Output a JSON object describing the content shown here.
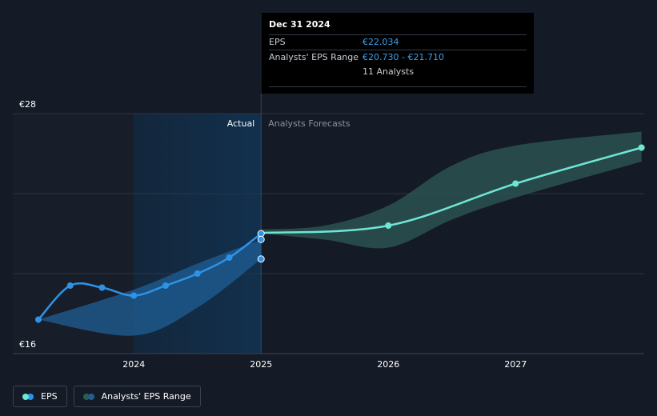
{
  "tooltip": {
    "date": "Dec 31 2024",
    "eps_label": "EPS",
    "eps_value": "€22.034",
    "range_label": "Analysts' EPS Range",
    "range_value": "€20.730 - €21.710",
    "analysts": "11 Analysts"
  },
  "regions": {
    "actual_label": "Actual",
    "forecast_label": "Analysts Forecasts"
  },
  "legend": {
    "eps_label": "EPS",
    "range_label": "Analysts' EPS Range"
  },
  "colors": {
    "background": "#151b26",
    "eps_actual": "#2e93e6",
    "eps_forecast": "#6ee6d5",
    "range_band_actual": "#1f5f96",
    "range_band_forecast": "#2e5a57",
    "actual_shade": "#12304d"
  },
  "chart_data": {
    "type": "line",
    "y_tick_labels": [
      "€28",
      "€16"
    ],
    "ylim": [
      16,
      28
    ],
    "x_tick_labels": [
      "2024",
      "2025",
      "2026",
      "2027"
    ],
    "xlim": [
      2023.25,
      2027.99
    ],
    "grid": true,
    "series": [
      {
        "name": "EPS",
        "segment": "actual",
        "points": [
          [
            2023.25,
            17.7
          ],
          [
            2023.5,
            19.4
          ],
          [
            2023.75,
            19.3
          ],
          [
            2024.0,
            18.9
          ],
          [
            2024.25,
            19.4
          ],
          [
            2024.5,
            20.0
          ],
          [
            2024.75,
            20.8
          ],
          [
            2025.0,
            22.0
          ]
        ]
      },
      {
        "name": "EPS",
        "segment": "forecast",
        "points": [
          [
            2025.0,
            22.034
          ],
          [
            2026.0,
            22.4
          ],
          [
            2027.0,
            24.5
          ],
          [
            2027.99,
            26.3
          ]
        ]
      }
    ],
    "range": {
      "name": "Analysts' EPS Range",
      "actual_upper": [
        [
          2023.25,
          17.7
        ],
        [
          2024.0,
          19.2
        ],
        [
          2024.5,
          20.5
        ],
        [
          2025.0,
          21.7
        ]
      ],
      "actual_lower": [
        [
          2023.25,
          17.7
        ],
        [
          2024.0,
          16.9
        ],
        [
          2024.5,
          18.3
        ],
        [
          2025.0,
          20.73
        ]
      ],
      "forecast_upper": [
        [
          2025.0,
          22.2
        ],
        [
          2025.5,
          22.4
        ],
        [
          2026.0,
          23.4
        ],
        [
          2026.5,
          25.4
        ],
        [
          2027.0,
          26.4
        ],
        [
          2027.99,
          27.1
        ]
      ],
      "forecast_lower": [
        [
          2025.0,
          22.0
        ],
        [
          2025.5,
          21.7
        ],
        [
          2026.0,
          21.3
        ],
        [
          2026.5,
          22.7
        ],
        [
          2027.0,
          23.8
        ],
        [
          2027.99,
          25.6
        ]
      ]
    },
    "markers": [
      {
        "x": 2025.0,
        "y": 21.71
      },
      {
        "x": 2025.0,
        "y": 20.73
      }
    ],
    "highlight_x": 2025.0
  }
}
